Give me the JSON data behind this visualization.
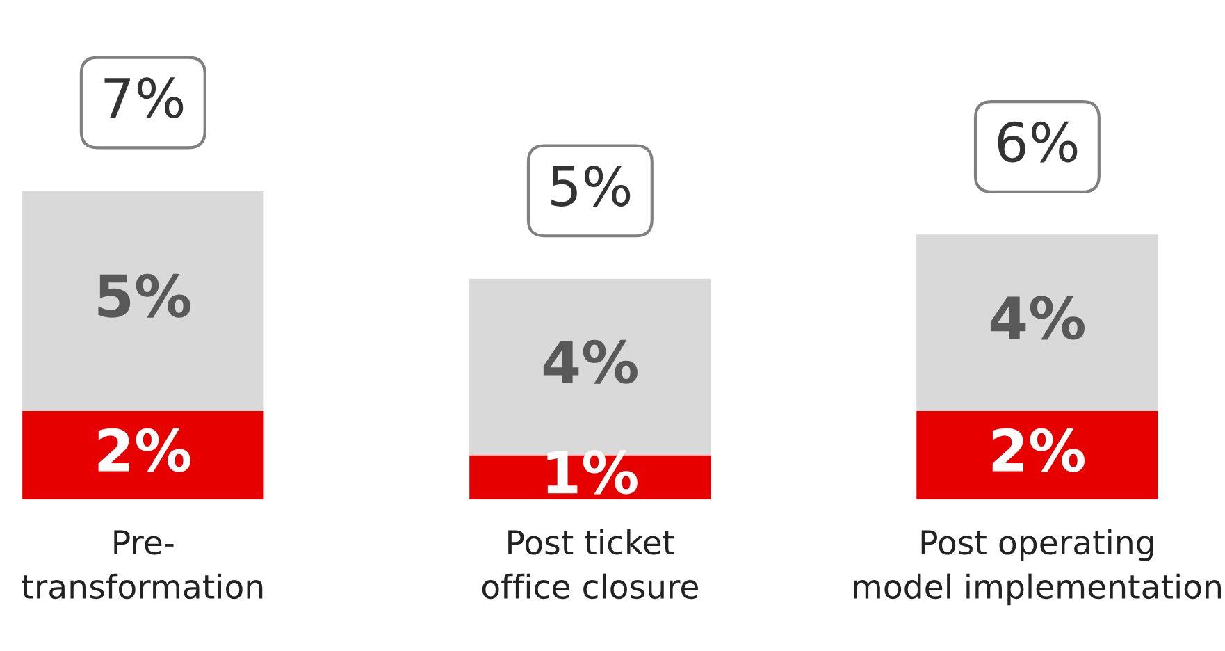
{
  "chart_data": {
    "type": "bar",
    "stacked": true,
    "categories": [
      "Pre-\ntransformation",
      "Post ticket\noffice closure",
      "Post operating\nmodel implementation"
    ],
    "series": [
      {
        "color": "#e60000",
        "values": [
          2,
          1,
          2
        ],
        "value_labels": [
          "2%",
          "1%",
          "2%"
        ]
      },
      {
        "color": "#d9d9d9",
        "values": [
          5,
          4,
          4
        ],
        "value_labels": [
          "5%",
          "4%",
          "4%"
        ]
      }
    ],
    "totals": [
      "7%",
      "5%",
      "6%"
    ]
  }
}
